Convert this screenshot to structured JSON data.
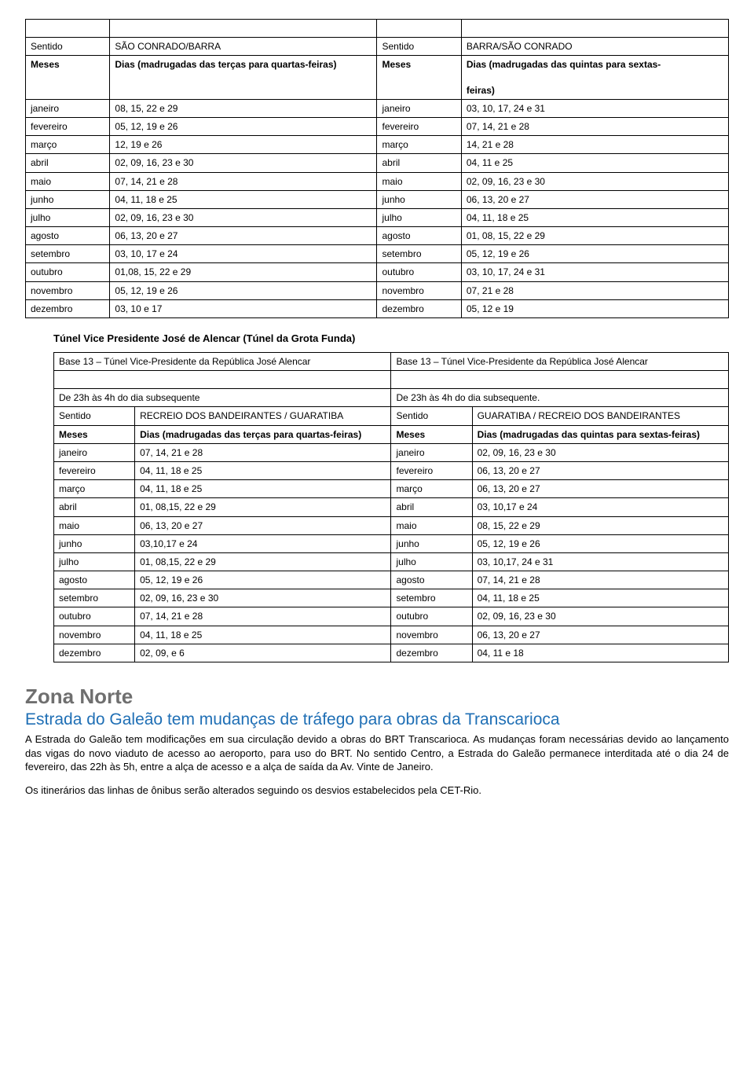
{
  "table1": {
    "header": {
      "leftLabel": "Sentido",
      "leftDir": "SÃO CONRADO/BARRA",
      "rightLabel": "Sentido",
      "rightDir": "BARRA/SÃO CONRADO",
      "mLeft": "Meses",
      "mLeftDesc": "Dias (madrugadas das terças para quartas-feiras)",
      "mRight": "Meses",
      "mRightDesc": "Dias (madrugadas das quintas para sextas-\n\nfeiras)"
    },
    "rows": [
      [
        "janeiro",
        "08, 15, 22 e  29",
        "janeiro",
        "03, 10, 17, 24 e 31"
      ],
      [
        "fevereiro",
        "05, 12, 19 e 26",
        "fevereiro",
        "07, 14, 21 e 28"
      ],
      [
        "março",
        "12, 19 e 26",
        "março",
        "14, 21 e 28"
      ],
      [
        "abril",
        "02, 09, 16, 23 e 30",
        "abril",
        "04, 11 e 25"
      ],
      [
        "maio",
        "07, 14, 21 e 28",
        "maio",
        "02, 09, 16, 23 e 30"
      ],
      [
        "junho",
        "04, 11, 18 e 25",
        "junho",
        "06, 13, 20 e 27"
      ],
      [
        "julho",
        "02, 09, 16, 23 e 30",
        "julho",
        "04, 11, 18 e 25"
      ],
      [
        "agosto",
        "06, 13, 20 e 27",
        "agosto",
        "01, 08, 15, 22 e 29"
      ],
      [
        "setembro",
        "03, 10, 17 e 24",
        "setembro",
        "05, 12, 19 e  26"
      ],
      [
        "outubro",
        "01,08, 15, 22 e 29",
        "outubro",
        "03, 10, 17,  24 e 31"
      ],
      [
        "novembro",
        "05, 12, 19 e 26",
        "novembro",
        "07, 21 e 28"
      ],
      [
        "dezembro",
        "03, 10 e 17",
        "dezembro",
        "05, 12 e 19"
      ]
    ]
  },
  "sectionHeading": "Túnel Vice Presidente José de Alencar (Túnel da Grota Funda)",
  "table2": {
    "baseLeft": "Base 13 – Túnel Vice-Presidente da República José Alencar",
    "baseRight": "Base 13 – Túnel Vice-Presidente da República José Alencar",
    "timeLeft": "De 23h às 4h do dia subsequente",
    "timeRight": "De 23h às 4h do dia subsequente.",
    "header": {
      "leftLabel": "Sentido",
      "leftDir": "RECREIO DOS BANDEIRANTES / GUARATIBA",
      "rightLabel": "Sentido",
      "rightDir": "GUARATIBA / RECREIO DOS BANDEIRANTES",
      "mLeft": "Meses",
      "mLeftDesc": "Dias (madrugadas das terças para quartas-feiras)",
      "mRight": "Meses",
      "mRightDesc": "Dias (madrugadas das quintas para sextas-feiras)"
    },
    "rows": [
      [
        "janeiro",
        "07, 14, 21 e 28",
        "janeiro",
        "02, 09, 16, 23 e 30"
      ],
      [
        "fevereiro",
        "04, 11, 18 e 25",
        "fevereiro",
        "06, 13, 20 e 27"
      ],
      [
        "março",
        "04, 11, 18 e 25",
        "março",
        "06, 13, 20 e 27"
      ],
      [
        "abril",
        "01, 08,15, 22 e 29",
        "abril",
        "03, 10,17 e 24"
      ],
      [
        "maio",
        "06, 13, 20 e 27",
        "maio",
        "08, 15, 22 e 29"
      ],
      [
        "junho",
        "03,10,17 e 24",
        "junho",
        "05, 12, 19 e 26"
      ],
      [
        "julho",
        "01, 08,15, 22 e 29",
        "julho",
        "03, 10,17, 24 e 31"
      ],
      [
        "agosto",
        "05, 12, 19 e 26",
        "agosto",
        "07, 14, 21 e 28"
      ],
      [
        "setembro",
        "02, 09, 16, 23 e 30",
        "setembro",
        "04, 11, 18 e 25"
      ],
      [
        "outubro",
        "07, 14, 21  e 28",
        "outubro",
        "02, 09, 16, 23 e 30"
      ],
      [
        "novembro",
        "04, 11, 18 e 25",
        "novembro",
        "06, 13, 20 e 27"
      ],
      [
        "dezembro",
        "02, 09, e 6",
        "dezembro",
        "04, 11 e 18"
      ]
    ]
  },
  "zone": {
    "title": "Zona Norte",
    "headline": "Estrada do Galeão tem mudanças de tráfego para obras da Transcarioca",
    "body1": "A Estrada do Galeão tem modificações em sua circulação devido a obras do BRT Transcarioca. As mudanças foram necessárias devido ao lançamento das vigas do novo viaduto de acesso ao aeroporto, para uso do BRT. No sentido Centro, a Estrada do Galeão permanece interditada até o dia 24 de fevereiro, das 22h às 5h, entre a alça de acesso e a alça de saída da Av. Vinte de Janeiro.",
    "body2": "Os itinerários das linhas de ônibus serão alterados seguindo os desvios estabelecidos pela CET-Rio."
  }
}
